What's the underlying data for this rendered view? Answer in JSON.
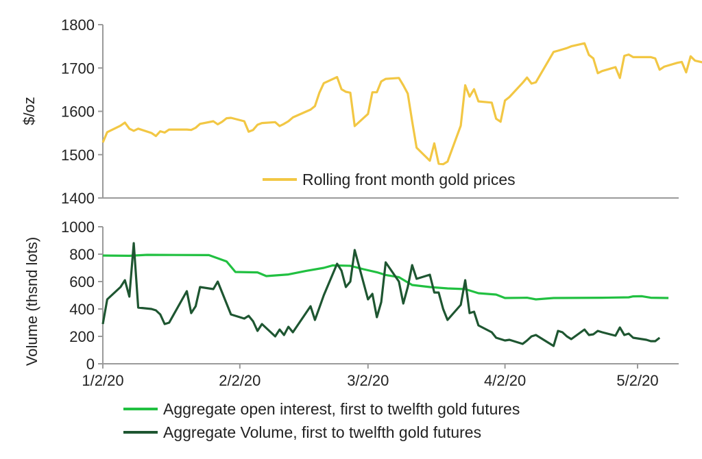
{
  "chart_data": [
    {
      "type": "line",
      "ylabel": "$/oz",
      "ylim": [
        1400,
        1800
      ],
      "yticks": [
        "1400",
        "1500",
        "1600",
        "1700",
        "1800"
      ],
      "grid": false,
      "legend_position": "bottom-center",
      "series": [
        {
          "name": "Rolling front month gold prices",
          "color": "#F2C744",
          "points": [
            [
              "2020-01-02",
              1528
            ],
            [
              "2020-01-03",
              1552
            ],
            [
              "2020-01-06",
              1567
            ],
            [
              "2020-01-07",
              1574
            ],
            [
              "2020-01-08",
              1560
            ],
            [
              "2020-01-09",
              1555
            ],
            [
              "2020-01-10",
              1560
            ],
            [
              "2020-01-13",
              1550
            ],
            [
              "2020-01-14",
              1543
            ],
            [
              "2020-01-15",
              1554
            ],
            [
              "2020-01-16",
              1551
            ],
            [
              "2020-01-17",
              1558
            ],
            [
              "2020-01-21",
              1558
            ],
            [
              "2020-01-22",
              1557
            ],
            [
              "2020-01-23",
              1562
            ],
            [
              "2020-01-24",
              1571
            ],
            [
              "2020-01-27",
              1577
            ],
            [
              "2020-01-28",
              1570
            ],
            [
              "2020-01-29",
              1576
            ],
            [
              "2020-01-30",
              1584
            ],
            [
              "2020-01-31",
              1585
            ],
            [
              "2020-02-03",
              1577
            ],
            [
              "2020-02-04",
              1553
            ],
            [
              "2020-02-05",
              1557
            ],
            [
              "2020-02-06",
              1569
            ],
            [
              "2020-02-07",
              1573
            ],
            [
              "2020-02-10",
              1575
            ],
            [
              "2020-02-11",
              1566
            ],
            [
              "2020-02-12",
              1571
            ],
            [
              "2020-02-13",
              1577
            ],
            [
              "2020-02-14",
              1586
            ],
            [
              "2020-02-18",
              1604
            ],
            [
              "2020-02-19",
              1612
            ],
            [
              "2020-02-20",
              1643
            ],
            [
              "2020-02-21",
              1665
            ],
            [
              "2020-02-24",
              1679
            ],
            [
              "2020-02-25",
              1651
            ],
            [
              "2020-02-26",
              1645
            ],
            [
              "2020-02-27",
              1643
            ],
            [
              "2020-02-28",
              1566
            ],
            [
              "2020-03-02",
              1594
            ],
            [
              "2020-03-03",
              1644
            ],
            [
              "2020-03-04",
              1644
            ],
            [
              "2020-03-05",
              1669
            ],
            [
              "2020-03-06",
              1675
            ],
            [
              "2020-03-09",
              1677
            ],
            [
              "2020-03-10",
              1660
            ],
            [
              "2020-03-11",
              1641
            ],
            [
              "2020-03-12",
              1577
            ],
            [
              "2020-03-13",
              1516
            ],
            [
              "2020-03-16",
              1486
            ],
            [
              "2020-03-17",
              1526
            ],
            [
              "2020-03-18",
              1479
            ],
            [
              "2020-03-19",
              1478
            ],
            [
              "2020-03-20",
              1484
            ],
            [
              "2020-03-23",
              1567
            ],
            [
              "2020-03-24",
              1660
            ],
            [
              "2020-03-25",
              1634
            ],
            [
              "2020-03-26",
              1651
            ],
            [
              "2020-03-27",
              1623
            ],
            [
              "2020-03-30",
              1620
            ],
            [
              "2020-03-31",
              1583
            ],
            [
              "2020-04-01",
              1576
            ],
            [
              "2020-04-02",
              1625
            ],
            [
              "2020-04-03",
              1633
            ],
            [
              "2020-04-06",
              1666
            ],
            [
              "2020-04-07",
              1678
            ],
            [
              "2020-04-08",
              1664
            ],
            [
              "2020-04-09",
              1667
            ],
            [
              "2020-04-13",
              1737
            ],
            [
              "2020-04-14",
              1740
            ],
            [
              "2020-04-15",
              1743
            ],
            [
              "2020-04-16",
              1746
            ],
            [
              "2020-04-17",
              1750
            ],
            [
              "2020-04-20",
              1757
            ],
            [
              "2020-04-21",
              1730
            ],
            [
              "2020-04-22",
              1722
            ],
            [
              "2020-04-23",
              1688
            ],
            [
              "2020-04-24",
              1693
            ],
            [
              "2020-04-27",
              1702
            ],
            [
              "2020-04-28",
              1677
            ],
            [
              "2020-04-29",
              1728
            ],
            [
              "2020-04-30",
              1731
            ],
            [
              "2020-05-01",
              1725
            ],
            [
              "2020-05-04",
              1725
            ],
            [
              "2020-05-05",
              1725
            ],
            [
              "2020-05-06",
              1722
            ],
            [
              "2020-05-07",
              1696
            ],
            [
              "2020-05-08",
              1703
            ],
            [
              "2020-05-11",
              1712
            ],
            [
              "2020-05-12",
              1714
            ],
            [
              "2020-05-13",
              1690
            ],
            [
              "2020-05-14",
              1727
            ],
            [
              "2020-05-15",
              1717
            ],
            [
              "2020-05-18",
              1710
            ],
            [
              "2020-05-19",
              1704
            ]
          ]
        }
      ]
    },
    {
      "type": "line",
      "ylabel": "Volume (thsnd lots)",
      "ylim": [
        0,
        1000
      ],
      "yticks": [
        "0",
        "200",
        "400",
        "600",
        "800",
        "1000"
      ],
      "xticks": [
        "1/2/20",
        "2/2/20",
        "3/2/20",
        "4/2/20",
        "5/2/20"
      ],
      "grid": false,
      "legend_position": "bottom-center",
      "series": [
        {
          "name": "Aggregate open interest, first to twelfth gold futures",
          "color": "#21C041",
          "points": [
            [
              "2020-01-02",
              790
            ],
            [
              "2020-01-08",
              788
            ],
            [
              "2020-01-12",
              795
            ],
            [
              "2020-01-26",
              793
            ],
            [
              "2020-01-30",
              747
            ],
            [
              "2020-02-01",
              670
            ],
            [
              "2020-02-06",
              667
            ],
            [
              "2020-02-08",
              640
            ],
            [
              "2020-02-13",
              652
            ],
            [
              "2020-02-17",
              678
            ],
            [
              "2020-02-21",
              700
            ],
            [
              "2020-02-23",
              718
            ],
            [
              "2020-02-27",
              715
            ],
            [
              "2020-03-01",
              690
            ],
            [
              "2020-03-04",
              668
            ],
            [
              "2020-03-06",
              648
            ],
            [
              "2020-03-09",
              632
            ],
            [
              "2020-03-12",
              575
            ],
            [
              "2020-03-16",
              560
            ],
            [
              "2020-03-20",
              550
            ],
            [
              "2020-03-24",
              545
            ],
            [
              "2020-03-27",
              515
            ],
            [
              "2020-03-31",
              505
            ],
            [
              "2020-04-02",
              480
            ],
            [
              "2020-04-07",
              482
            ],
            [
              "2020-04-09",
              470
            ],
            [
              "2020-04-13",
              480
            ],
            [
              "2020-04-24",
              482
            ],
            [
              "2020-04-30",
              485
            ],
            [
              "2020-05-01",
              492
            ],
            [
              "2020-05-03",
              493
            ],
            [
              "2020-05-05",
              482
            ],
            [
              "2020-05-09",
              480
            ]
          ]
        },
        {
          "name": "Aggregate Volume, first to twelfth gold futures",
          "color": "#1E5631",
          "points": [
            [
              "2020-01-02",
              290
            ],
            [
              "2020-01-03",
              470
            ],
            [
              "2020-01-06",
              560
            ],
            [
              "2020-01-07",
              610
            ],
            [
              "2020-01-08",
              490
            ],
            [
              "2020-01-09",
              880
            ],
            [
              "2020-01-10",
              410
            ],
            [
              "2020-01-13",
              400
            ],
            [
              "2020-01-14",
              390
            ],
            [
              "2020-01-15",
              360
            ],
            [
              "2020-01-16",
              290
            ],
            [
              "2020-01-17",
              300
            ],
            [
              "2020-01-21",
              530
            ],
            [
              "2020-01-22",
              370
            ],
            [
              "2020-01-23",
              420
            ],
            [
              "2020-01-24",
              560
            ],
            [
              "2020-01-27",
              545
            ],
            [
              "2020-01-28",
              600
            ],
            [
              "2020-01-31",
              360
            ],
            [
              "2020-02-03",
              330
            ],
            [
              "2020-02-04",
              350
            ],
            [
              "2020-02-05",
              310
            ],
            [
              "2020-02-06",
              240
            ],
            [
              "2020-02-07",
              290
            ],
            [
              "2020-02-10",
              200
            ],
            [
              "2020-02-11",
              250
            ],
            [
              "2020-02-12",
              210
            ],
            [
              "2020-02-13",
              270
            ],
            [
              "2020-02-14",
              230
            ],
            [
              "2020-02-18",
              420
            ],
            [
              "2020-02-19",
              320
            ],
            [
              "2020-02-20",
              410
            ],
            [
              "2020-02-21",
              500
            ],
            [
              "2020-02-24",
              730
            ],
            [
              "2020-02-25",
              680
            ],
            [
              "2020-02-26",
              560
            ],
            [
              "2020-02-27",
              600
            ],
            [
              "2020-02-28",
              830
            ],
            [
              "2020-03-02",
              470
            ],
            [
              "2020-03-03",
              510
            ],
            [
              "2020-03-04",
              340
            ],
            [
              "2020-03-05",
              450
            ],
            [
              "2020-03-06",
              740
            ],
            [
              "2020-03-09",
              600
            ],
            [
              "2020-03-10",
              440
            ],
            [
              "2020-03-11",
              560
            ],
            [
              "2020-03-12",
              720
            ],
            [
              "2020-03-13",
              620
            ],
            [
              "2020-03-16",
              650
            ],
            [
              "2020-03-17",
              520
            ],
            [
              "2020-03-18",
              520
            ],
            [
              "2020-03-19",
              400
            ],
            [
              "2020-03-20",
              320
            ],
            [
              "2020-03-23",
              430
            ],
            [
              "2020-03-24",
              610
            ],
            [
              "2020-03-25",
              370
            ],
            [
              "2020-03-26",
              380
            ],
            [
              "2020-03-27",
              280
            ],
            [
              "2020-03-30",
              230
            ],
            [
              "2020-03-31",
              190
            ],
            [
              "2020-04-01",
              180
            ],
            [
              "2020-04-02",
              170
            ],
            [
              "2020-04-03",
              175
            ],
            [
              "2020-04-06",
              145
            ],
            [
              "2020-04-07",
              170
            ],
            [
              "2020-04-08",
              200
            ],
            [
              "2020-04-09",
              210
            ],
            [
              "2020-04-13",
              130
            ],
            [
              "2020-04-14",
              240
            ],
            [
              "2020-04-15",
              230
            ],
            [
              "2020-04-16",
              200
            ],
            [
              "2020-04-17",
              180
            ],
            [
              "2020-04-20",
              250
            ],
            [
              "2020-04-21",
              210
            ],
            [
              "2020-04-22",
              215
            ],
            [
              "2020-04-23",
              240
            ],
            [
              "2020-04-24",
              230
            ],
            [
              "2020-04-27",
              205
            ],
            [
              "2020-04-28",
              265
            ],
            [
              "2020-04-29",
              210
            ],
            [
              "2020-04-30",
              220
            ],
            [
              "2020-05-01",
              190
            ],
            [
              "2020-05-04",
              175
            ],
            [
              "2020-05-05",
              165
            ],
            [
              "2020-05-06",
              165
            ],
            [
              "2020-05-07",
              190
            ]
          ]
        }
      ]
    }
  ]
}
